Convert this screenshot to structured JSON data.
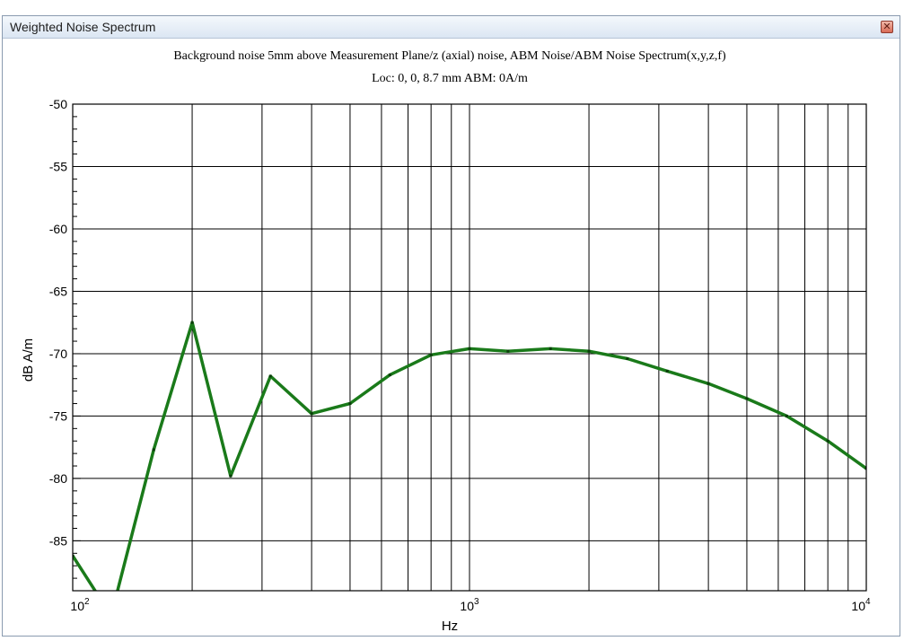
{
  "window": {
    "title": "Weighted Noise Spectrum",
    "close_icon": "close-icon"
  },
  "chart_data": {
    "type": "line",
    "title": "Background noise 5mm above Measurement Plane/z (axial) noise, ABM Noise/ABM Noise Spectrum(x,y,z,f)",
    "subtitle": "Loc: 0, 0, 8.7 mm ABM: 0A/m",
    "xlabel": "Hz",
    "ylabel": "dB A/m",
    "xscale": "log",
    "xlim": [
      100,
      10000
    ],
    "ylim": [
      -89,
      -50
    ],
    "grid": true,
    "x_ticks": [
      100,
      1000,
      10000
    ],
    "x_tick_labels": [
      {
        "base": "10",
        "exp": "2"
      },
      {
        "base": "10",
        "exp": "3"
      },
      {
        "base": "10",
        "exp": "4"
      }
    ],
    "y_ticks": [
      -50,
      -55,
      -60,
      -65,
      -70,
      -75,
      -80,
      -85
    ],
    "y_tick_labels": [
      "-50",
      "-55",
      "-60",
      "-65",
      "-70",
      "-75",
      "-80",
      "-85"
    ],
    "series": [
      {
        "color": "#1a7a1a",
        "x": [
          100,
          125,
          160,
          200,
          250,
          315,
          400,
          500,
          630,
          800,
          1000,
          1250,
          1600,
          2000,
          2500,
          3150,
          4000,
          5000,
          6300,
          8000,
          10000
        ],
        "y": [
          -86.2,
          -91.0,
          -77.7,
          -67.5,
          -79.8,
          -71.8,
          -74.8,
          -74.0,
          -71.7,
          -70.1,
          -69.6,
          -69.8,
          -69.6,
          -69.8,
          -70.4,
          -71.4,
          -72.4,
          -73.6,
          -75.0,
          -77.0,
          -79.2
        ]
      }
    ]
  }
}
